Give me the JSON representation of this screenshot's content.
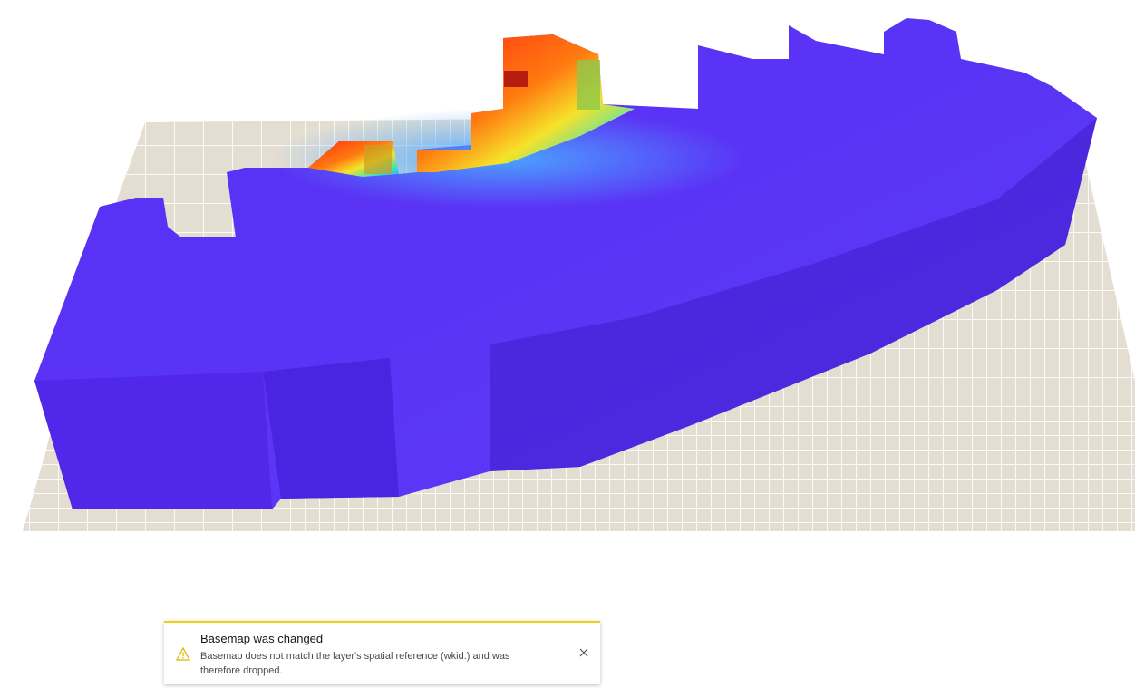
{
  "notice": {
    "title": "Basemap was changed",
    "message": "Basemap does not match the layer's spatial reference (wkid:) and was therefore dropped."
  }
}
